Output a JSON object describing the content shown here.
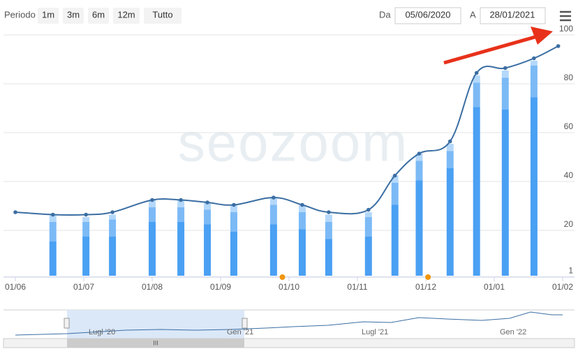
{
  "toolbar": {
    "period_label": "Periodo",
    "buttons": [
      "1m",
      "3m",
      "6m",
      "12m",
      "Tutto"
    ],
    "from_label": "Da",
    "from_date": "05/06/2020",
    "to_label": "A",
    "to_date": "28/01/2021"
  },
  "chart_data": {
    "type": "line",
    "watermark": "seozoom",
    "x": [
      "01/06",
      "18/06",
      "02/07",
      "14/07",
      "01/08",
      "14/08",
      "26/08",
      "07/09",
      "25/09",
      "07/10",
      "19/10",
      "06/11",
      "18/11",
      "29/11",
      "12/12",
      "24/12",
      "06/01",
      "19/01",
      "30/01"
    ],
    "xticks": [
      "01/06",
      "01/07",
      "01/08",
      "01/09",
      "01/10",
      "01/11",
      "01/12",
      "01/01",
      "01/02"
    ],
    "ylim": [
      0,
      100
    ],
    "yticks": [
      1,
      20,
      40,
      60,
      80,
      100
    ],
    "grid": true,
    "series": [
      {
        "color": "#3b6ea3",
        "values": [
          26,
          25,
          25,
          26,
          31,
          31,
          30,
          29,
          32,
          29,
          26,
          27,
          41,
          50,
          55,
          83,
          85,
          89,
          94
        ]
      }
    ],
    "bars": {
      "type": "bar",
      "stacked": true,
      "series": [
        {
          "color": "#4aa0f3",
          "values": [
            null,
            14,
            16,
            16,
            22,
            22,
            21,
            18,
            21,
            19,
            15,
            16,
            29,
            39,
            44,
            69,
            68,
            73,
            null
          ]
        },
        {
          "color": "#7cbaf6",
          "values": [
            null,
            8,
            6,
            7,
            6,
            6,
            6,
            8,
            8,
            7,
            7,
            8,
            9,
            8,
            7,
            10,
            13,
            13,
            null
          ]
        },
        {
          "color": "#b4d8fa",
          "values": [
            null,
            3,
            2,
            2,
            3,
            3,
            3,
            3,
            3,
            3,
            3,
            2,
            3,
            3,
            3,
            3,
            3,
            2,
            null
          ]
        }
      ]
    },
    "events": {
      "color": "#f0960e",
      "x": [
        "29/09",
        "02/12"
      ]
    }
  },
  "navigator": {
    "labels": [
      "Lugl '20",
      "Gen '21",
      "Lugl '21",
      "Gen '22"
    ]
  }
}
